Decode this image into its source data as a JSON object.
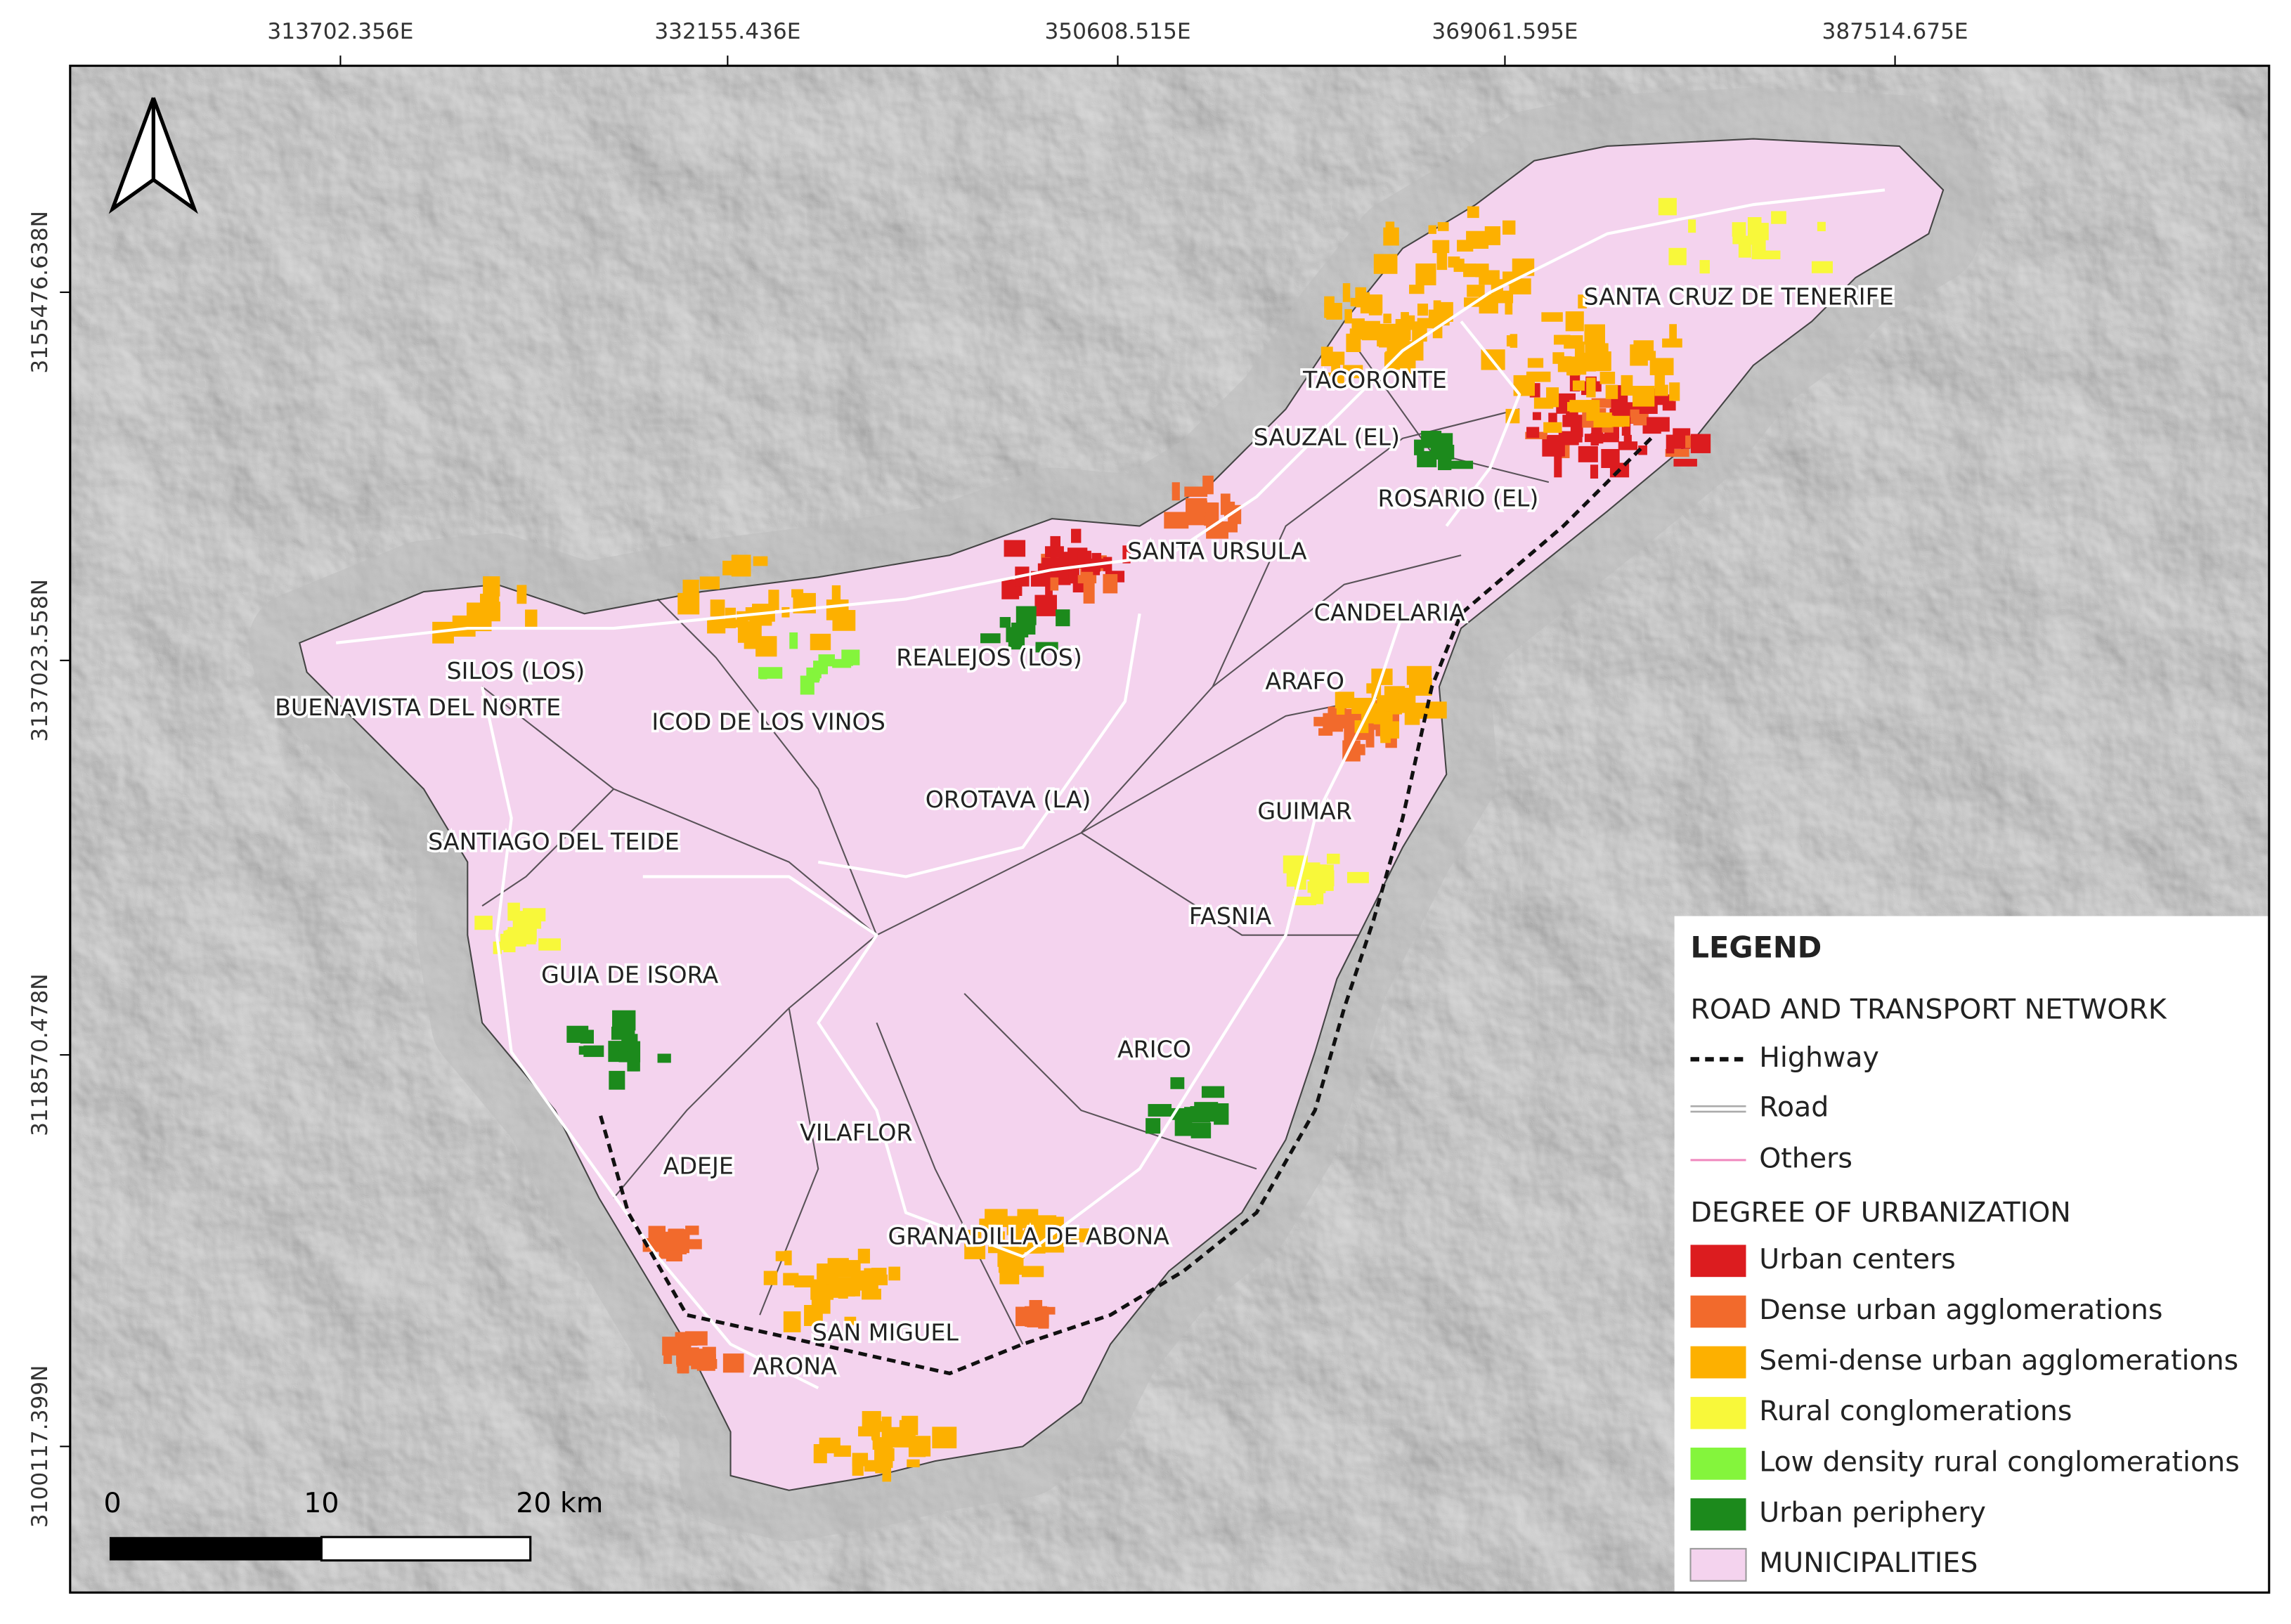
{
  "map": {
    "top_coordinates": [
      "313702.356E",
      "332155.436E",
      "350608.515E",
      "369061.595E",
      "387514.675E"
    ],
    "left_coordinates": [
      "3155476.638N",
      "3137023.558N",
      "3118570.478N",
      "3100117.399N"
    ],
    "municipality_labels": [
      "SANTA CRUZ DE TENERIFE",
      "TACORONTE",
      "SAUZAL (EL)",
      "ROSARIO (EL)",
      "SANTA URSULA",
      "CANDELARIA",
      "REALEJOS (LOS)",
      "SILOS (LOS)",
      "ARAFO",
      "BUENAVISTA DEL NORTE",
      "ICOD DE LOS VINOS",
      "OROTAVA (LA)",
      "GUIMAR",
      "SANTIAGO DEL TEIDE",
      "FASNIA",
      "GUIA DE ISORA",
      "ARICO",
      "VILAFLOR",
      "ADEJE",
      "GRANADILLA DE ABONA",
      "SAN MIGUEL",
      "ARONA"
    ],
    "scale_bar": [
      "0",
      "10",
      "20 km"
    ]
  },
  "legend": {
    "title": "LEGEND",
    "network_heading": "ROAD AND TRANSPORT NETWORK",
    "network": [
      "Highway",
      "Road",
      "Others"
    ],
    "urbanization_heading": "DEGREE OF URBANIZATION",
    "urbanization": [
      {
        "label": "Urban centers",
        "color": "#dc1c1f"
      },
      {
        "label": "Dense urban agglomerations",
        "color": "#f26a2c"
      },
      {
        "label": "Semi-dense urban agglomerations",
        "color": "#fdb000"
      },
      {
        "label": "Rural conglomerations",
        "color": "#f8f83a"
      },
      {
        "label": "Low density rural conglomerations",
        "color": "#84f53c"
      },
      {
        "label": "Urban periphery",
        "color": "#1c8a1c"
      }
    ],
    "municipalities": {
      "label": "MUNICIPALITIES",
      "color": "#f4d3ee"
    }
  }
}
